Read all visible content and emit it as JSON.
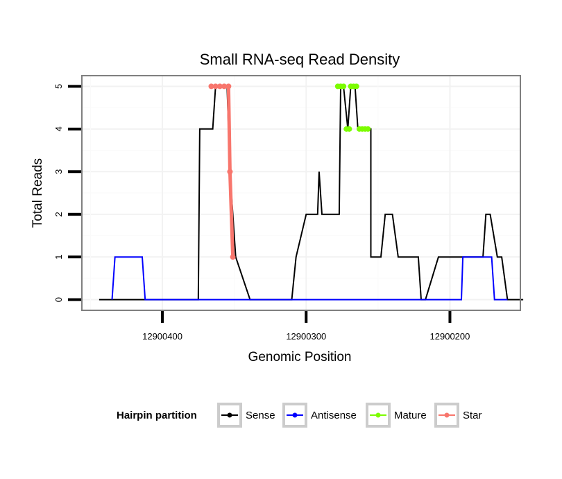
{
  "chart_data": {
    "type": "line",
    "title": "Small RNA-seq Read Density",
    "xlabel": "Genomic Position",
    "ylabel": "Total Reads",
    "x_reversed": true,
    "xlim": [
      12900456,
      12900151
    ],
    "ylim": [
      -0.25,
      5.25
    ],
    "x_ticks": [
      12900400,
      12900300,
      12900200
    ],
    "x_tick_labels": [
      "12900400",
      "12900300",
      "12900200"
    ],
    "y_ticks": [
      0,
      1,
      2,
      3,
      4,
      5
    ],
    "y_tick_labels": [
      "0",
      "1",
      "2",
      "3",
      "4",
      "5"
    ],
    "grid": true,
    "legend": {
      "title": "Hairpin partition",
      "position": "bottom",
      "entries": [
        {
          "name": "Sense",
          "color": "#000000"
        },
        {
          "name": "Antisense",
          "color": "#0000ff"
        },
        {
          "name": "Mature",
          "color": "#7cfc00"
        },
        {
          "name": "Star",
          "color": "#f8766d"
        }
      ]
    },
    "series": [
      {
        "name": "Sense",
        "color": "#000000",
        "x": [
          12900444,
          12900375,
          12900374,
          12900365,
          12900363,
          12900355,
          12900353,
          12900349,
          12900339,
          12900336,
          12900332,
          12900310,
          12900307,
          12900307,
          12900300,
          12900300,
          12900292,
          12900291,
          12900289,
          12900287,
          12900277,
          12900276,
          12900275,
          12900274,
          12900271,
          12900269,
          12900268,
          12900266,
          12900264,
          12900256,
          12900255,
          12900255,
          12900250,
          12900248,
          12900245,
          12900240,
          12900236,
          12900235,
          12900222,
          12900220,
          12900217,
          12900208,
          12900204,
          12900199,
          12900194,
          12900192,
          12900177,
          12900175,
          12900174,
          12900172,
          12900167,
          12900164,
          12900160,
          12900149
        ],
        "y": [
          0,
          0,
          4,
          4,
          5,
          5,
          3,
          1,
          0,
          0,
          0,
          0,
          1,
          1,
          2,
          2,
          2,
          3,
          2,
          2,
          2,
          5,
          5,
          5,
          4,
          5,
          5,
          5,
          4,
          4,
          4,
          1,
          1,
          1,
          2,
          2,
          1,
          1,
          1,
          0,
          0,
          1,
          1,
          1,
          1,
          1,
          1,
          2,
          2,
          2,
          1,
          1,
          0,
          0
        ]
      },
      {
        "name": "Antisense",
        "color": "#0000ff",
        "x": [
          12900435,
          12900433,
          12900414,
          12900412,
          12900400,
          12900300,
          12900200,
          12900192,
          12900191,
          12900171,
          12900169,
          12900160
        ],
        "y": [
          0,
          1,
          1,
          0,
          0,
          0,
          0,
          0,
          1,
          1,
          0,
          0
        ]
      },
      {
        "name": "Mature",
        "color": "#7cfc00",
        "x": [
          12900278,
          12900276,
          12900274,
          12900272,
          12900270,
          12900269,
          12900267,
          12900265,
          12900263,
          12900261,
          12900259,
          12900257
        ],
        "y": [
          5,
          5,
          5,
          4,
          4,
          5,
          5,
          5,
          4,
          4,
          4,
          4
        ]
      },
      {
        "name": "Star",
        "color": "#f8766d",
        "x": [
          12900366,
          12900363,
          12900360,
          12900357,
          12900354,
          12900353,
          12900351
        ],
        "y": [
          5,
          5,
          5,
          5,
          5,
          3,
          1
        ]
      }
    ]
  }
}
